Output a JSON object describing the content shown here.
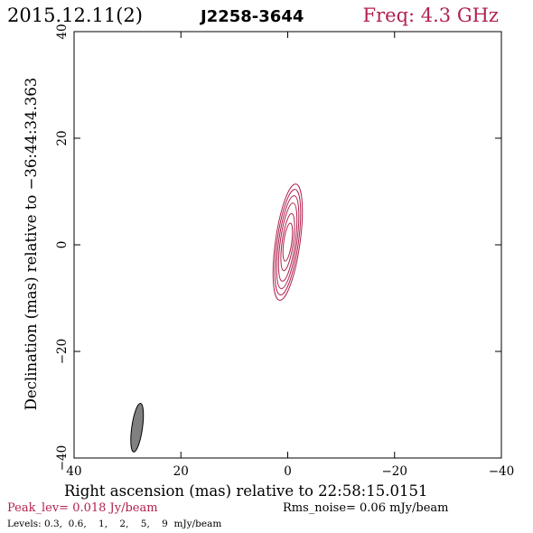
{
  "header": {
    "date": "2015.12.11(2)",
    "source": "J2258-3644",
    "freq": "Freq: 4.3 GHz"
  },
  "footer": {
    "peak": "Peak_lev=  0.018 Jy/beam",
    "rms": "Rms_noise= 0.06 mJy/beam",
    "levels": "Levels: 0.3,  0.6,    1,    2,    5,    9  mJy/beam"
  },
  "colors": {
    "accent": "#b0224e",
    "contour": "#b0224e",
    "beam_fill": "#808080",
    "axis": "#000000"
  },
  "chart_data": {
    "type": "contour",
    "xlabel": "Right ascension (mas) relative to 22:58:15.0151",
    "ylabel": "Declination (mas) relative to −36:44:34.363",
    "xlim": [
      40,
      -40
    ],
    "ylim": [
      -40,
      40
    ],
    "xticks": [
      40,
      20,
      0,
      -20,
      -40
    ],
    "yticks": [
      -40,
      -20,
      0,
      20,
      40
    ],
    "xtick_labels": [
      "40",
      "20",
      "0",
      "−20",
      "−40"
    ],
    "ytick_labels": [
      "−40",
      "−20",
      "0",
      "20",
      "40"
    ],
    "grid": false,
    "contour_levels_mJy": [
      0.3,
      0.6,
      1,
      2,
      5,
      9
    ],
    "contours": [
      {
        "level": 0.3,
        "center": [
          0,
          0.5
        ],
        "semi_major": 11.0,
        "semi_minor": 2.3,
        "pa_deg": 8
      },
      {
        "level": 0.6,
        "center": [
          0,
          0.5
        ],
        "semi_major": 10.0,
        "semi_minor": 2.0,
        "pa_deg": 8
      },
      {
        "level": 1,
        "center": [
          0,
          0.5
        ],
        "semi_major": 8.8,
        "semi_minor": 1.7,
        "pa_deg": 8
      },
      {
        "level": 2,
        "center": [
          0,
          0.5
        ],
        "semi_major": 7.4,
        "semi_minor": 1.4,
        "pa_deg": 8
      },
      {
        "level": 5,
        "center": [
          0,
          0.5
        ],
        "semi_major": 5.4,
        "semi_minor": 1.05,
        "pa_deg": 8
      },
      {
        "level": 9,
        "center": [
          0,
          0.5
        ],
        "semi_major": 3.6,
        "semi_minor": 0.75,
        "pa_deg": 8
      }
    ],
    "beam": {
      "center": [
        28.2,
        -34.3
      ],
      "semi_major": 4.6,
      "semi_minor": 1.0,
      "pa_deg": 8
    }
  }
}
